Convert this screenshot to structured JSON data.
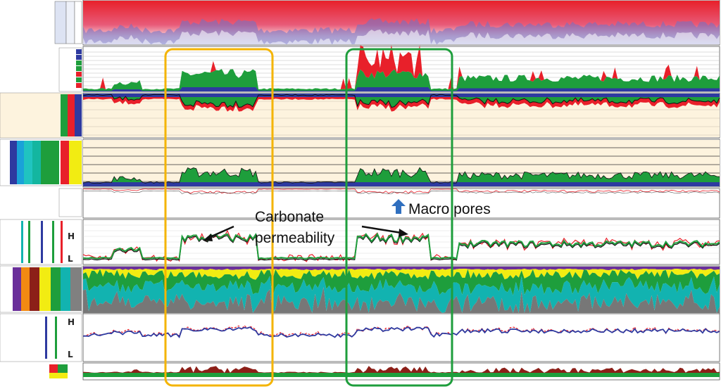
{
  "colors": {
    "red": "#e8202a",
    "blue": "#2e3aa0",
    "green": "#1e9e3c",
    "teal": "#12b3b0",
    "yellow": "#f2ec12",
    "grey": "#777777",
    "purple": "#6a2f9a",
    "orange_box": "#f4b400",
    "green_box": "#1e9e3c",
    "zone_bg": "#fdf3de"
  },
  "annotations": {
    "carbonate_line1": "Carbonate",
    "carbonate_line2": "permeability",
    "macro_pores": "Macro pores"
  },
  "chart_data": {
    "type": "area",
    "title": "",
    "legend_placement": "left-strip",
    "highlight_boxes": [
      {
        "name": "carbonate-zone-1",
        "color": "orange"
      },
      {
        "name": "carbonate-zone-2",
        "color": "green"
      }
    ],
    "tracks": [
      {
        "id": "pore-image",
        "style": "heat-strip"
      },
      {
        "id": "pore-size",
        "style": "stacked-area"
      },
      {
        "id": "cum-vars-1",
        "style": "band"
      },
      {
        "id": "cum-vars-2",
        "style": "band"
      },
      {
        "id": "permeability",
        "style": "line",
        "series": 3
      },
      {
        "id": "lithology",
        "style": "stacked-area",
        "components": [
          "purple",
          "yellow",
          "green",
          "teal",
          "grey"
        ]
      },
      {
        "id": "density",
        "style": "line",
        "series": 3
      },
      {
        "id": "bottom-flag",
        "style": "flag"
      }
    ]
  }
}
